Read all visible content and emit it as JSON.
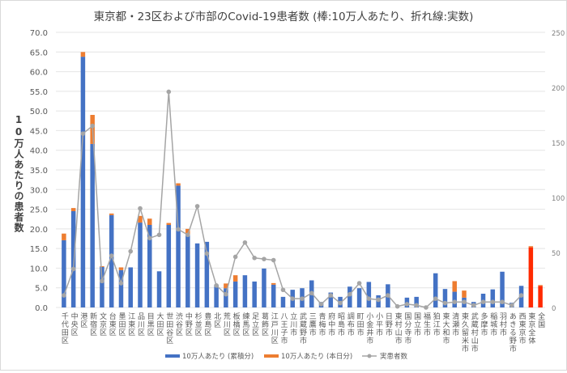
{
  "chart_data": {
    "type": "bar",
    "title": "東京都・23区および市部のCovid-19患者数 (棒:10万人あたり、折れ線:実数)",
    "ylabel": "10万人あたりの患者数",
    "ylim": [
      0,
      70
    ],
    "y2lim": [
      0,
      250
    ],
    "yticks": [
      "0.0",
      "5.0",
      "10.0",
      "15.0",
      "20.0",
      "25.0",
      "30.0",
      "35.0",
      "40.0",
      "45.0",
      "50.0",
      "55.0",
      "60.0",
      "65.0",
      "70.0"
    ],
    "y2ticks": [
      "0",
      "50",
      "100",
      "150",
      "200",
      "250"
    ],
    "grid": true,
    "legend_position": "bottom",
    "categories": [
      "千代田区",
      "中央区",
      "港区",
      "新宿区",
      "文京区",
      "台東区",
      "墨田区",
      "江東区",
      "品川区",
      "目黒区",
      "大田区",
      "世田谷区",
      "渋谷区",
      "中野区",
      "杉並区",
      "豊島区",
      "北区",
      "荒川区",
      "板橋区",
      "練馬区",
      "足立区",
      "葛飾区",
      "江戸川区",
      "八王子市",
      "立川市",
      "武蔵野市",
      "三鷹市",
      "青梅市",
      "府中市",
      "昭島市",
      "調布市",
      "町田市",
      "小金井市",
      "小平市",
      "日野市",
      "東村山市",
      "国分寺市",
      "国立市",
      "福生市",
      "狛江市",
      "東大和市",
      "清瀬市",
      "東久留米市",
      "武蔵村山市",
      "多摩市",
      "稲城市",
      "羽村市",
      "あきる野市",
      "西東京市",
      "東京全体",
      "全国"
    ],
    "series": [
      {
        "name": "10万人あたり (累積分)",
        "color": "#4472c4",
        "type": "bar",
        "values": [
          17.1,
          24.5,
          63.8,
          41.6,
          10.3,
          23.5,
          9.5,
          10.2,
          21.6,
          21.0,
          9.2,
          21.0,
          31.0,
          18.5,
          16.3,
          16.7,
          5.8,
          4.9,
          6.6,
          8.2,
          6.6,
          9.9,
          5.8,
          2.7,
          4.5,
          4.9,
          6.9,
          1.4,
          3.8,
          2.7,
          5.3,
          4.9,
          6.5,
          3.1,
          5.9,
          0,
          2.5,
          2.7,
          0,
          8.7,
          4.7,
          4.0,
          2.5,
          1.4,
          3.5,
          4.6,
          9.1,
          1.2,
          5.5,
          15.3,
          5.5
        ]
      },
      {
        "name": "10万人あたり (本日分)",
        "color": "#ed7d31",
        "type": "bar",
        "values": [
          1.7,
          0.8,
          1.2,
          7.4,
          0.2,
          0.4,
          0.7,
          0,
          1.7,
          1.6,
          0,
          0.5,
          0.6,
          1.5,
          0,
          0,
          0,
          1.2,
          1.6,
          0,
          0,
          0,
          0.4,
          0,
          0,
          0,
          0,
          0,
          0,
          0,
          0,
          0,
          0,
          0,
          0,
          0,
          0,
          0,
          0,
          0,
          0,
          2.7,
          1.8,
          0,
          0,
          0,
          0,
          0,
          0,
          0.3,
          0.2
        ]
      },
      {
        "name": "実患者数",
        "color": "#a5a5a5",
        "type": "line",
        "axis": "right",
        "values": [
          11,
          35,
          158,
          165,
          24,
          47,
          22,
          51,
          90,
          63,
          66,
          196,
          71,
          66,
          92,
          49,
          20,
          12,
          46,
          59,
          45,
          44,
          43,
          16,
          8,
          8,
          13,
          3,
          11,
          4,
          12,
          22,
          8,
          7,
          11,
          1,
          3,
          2,
          0,
          8,
          4,
          5,
          5,
          2,
          5,
          5,
          5,
          2,
          11,
          null,
          null
        ]
      }
    ],
    "highlight_color": "#ff2a00",
    "highlight_categories": [
      "東京全体",
      "全国"
    ]
  }
}
